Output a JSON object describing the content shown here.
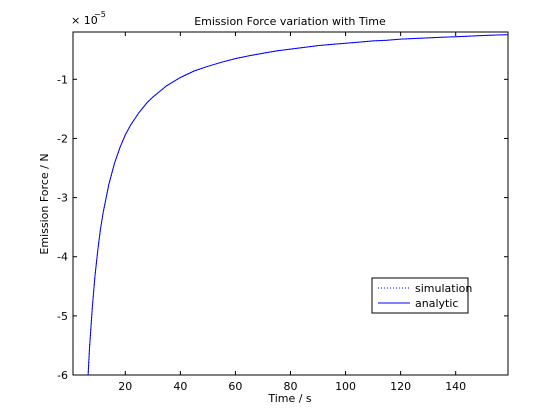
{
  "chart_data": {
    "type": "line",
    "title": "Emission Force variation with Time",
    "xlabel": "Time / s",
    "ylabel": "Emission Force / N",
    "exponent_label": "× 10",
    "exponent_power": "−5",
    "xlim": [
      1,
      159
    ],
    "ylim": [
      -6,
      -0.2
    ],
    "xticks": [
      20,
      40,
      60,
      80,
      100,
      120,
      140
    ],
    "xtick_labels": [
      "20",
      "40",
      "60",
      "80",
      "100",
      "120",
      "140"
    ],
    "yticks": [
      -6,
      -5,
      -4,
      -3,
      -2,
      -1
    ],
    "ytick_labels": [
      "-6",
      "-5",
      "-4",
      "-3",
      "-2",
      "-1"
    ],
    "grid": false,
    "legend_position": "lower-right",
    "series": [
      {
        "name": "simulation",
        "style": "dotted",
        "color": "#0000ff",
        "x": [
          6.5,
          7,
          8,
          9,
          10,
          11,
          12,
          14,
          16,
          18,
          20,
          22,
          25,
          28,
          30,
          35,
          40,
          45,
          50,
          55,
          60,
          65,
          70,
          75,
          80,
          85,
          90,
          95,
          100,
          105,
          110,
          115,
          120,
          125,
          130,
          135,
          140,
          145,
          150,
          155,
          159
        ],
        "y": [
          -6.0,
          -5.55,
          -4.86,
          -4.32,
          -3.89,
          -3.53,
          -3.24,
          -2.78,
          -2.43,
          -2.16,
          -1.94,
          -1.77,
          -1.56,
          -1.39,
          -1.3,
          -1.11,
          -0.97,
          -0.86,
          -0.78,
          -0.71,
          -0.65,
          -0.6,
          -0.56,
          -0.52,
          -0.49,
          -0.46,
          -0.43,
          -0.41,
          -0.39,
          -0.37,
          -0.35,
          -0.34,
          -0.32,
          -0.31,
          -0.3,
          -0.29,
          -0.28,
          -0.27,
          -0.26,
          -0.25,
          -0.245
        ]
      },
      {
        "name": "analytic",
        "style": "solid",
        "color": "#0000ff",
        "x": [
          6.5,
          7,
          8,
          9,
          10,
          11,
          12,
          14,
          16,
          18,
          20,
          22,
          25,
          28,
          30,
          35,
          40,
          45,
          50,
          55,
          60,
          65,
          70,
          75,
          80,
          85,
          90,
          95,
          100,
          105,
          110,
          115,
          120,
          125,
          130,
          135,
          140,
          145,
          150,
          155,
          159
        ],
        "y": [
          -6.0,
          -5.55,
          -4.86,
          -4.32,
          -3.89,
          -3.53,
          -3.24,
          -2.78,
          -2.43,
          -2.16,
          -1.94,
          -1.77,
          -1.56,
          -1.39,
          -1.3,
          -1.11,
          -0.97,
          -0.86,
          -0.78,
          -0.71,
          -0.65,
          -0.6,
          -0.56,
          -0.52,
          -0.49,
          -0.46,
          -0.43,
          -0.41,
          -0.39,
          -0.37,
          -0.35,
          -0.34,
          -0.32,
          -0.31,
          -0.3,
          -0.29,
          -0.28,
          -0.27,
          -0.26,
          -0.25,
          -0.245
        ]
      }
    ]
  }
}
